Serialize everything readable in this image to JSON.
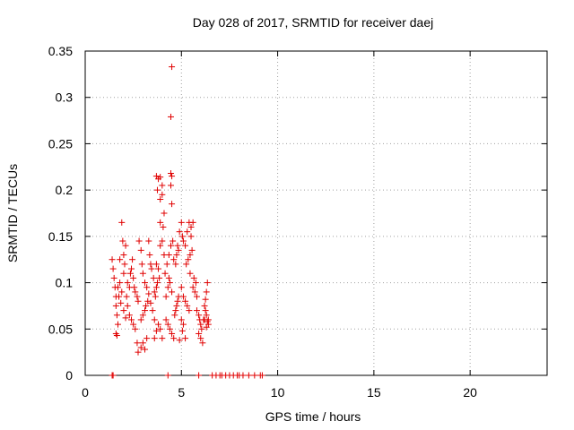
{
  "chart_data": {
    "type": "scatter",
    "title": "Day 028 of 2017, SRMTID for receiver daej",
    "xlabel": "GPS time / hours",
    "ylabel": "SRMTID / TECUs",
    "xlim": [
      0,
      24
    ],
    "ylim": [
      0,
      0.35
    ],
    "x_ticks": [
      "0",
      "5",
      "10",
      "15",
      "20"
    ],
    "x_tick_values": [
      0,
      5,
      10,
      15,
      20
    ],
    "y_ticks": [
      "0",
      "0.05",
      "0.1",
      "0.15",
      "0.2",
      "0.25",
      "0.3",
      "0.35"
    ],
    "y_tick_values": [
      0,
      0.05,
      0.1,
      0.15,
      0.2,
      0.25,
      0.3,
      0.35
    ],
    "grid": true,
    "marker": "+",
    "marker_color": "#e00000",
    "series": [
      {
        "points": [
          [
            4.5,
            0.333
          ],
          [
            4.45,
            0.279
          ],
          [
            3.7,
            0.215
          ],
          [
            3.8,
            0.212
          ],
          [
            3.9,
            0.214
          ],
          [
            4.0,
            0.205
          ],
          [
            3.75,
            0.2
          ],
          [
            4.0,
            0.195
          ],
          [
            3.9,
            0.19
          ],
          [
            4.45,
            0.218
          ],
          [
            4.5,
            0.215
          ],
          [
            4.45,
            0.205
          ],
          [
            4.5,
            0.185
          ],
          [
            3.9,
            0.165
          ],
          [
            4.1,
            0.175
          ],
          [
            4.05,
            0.16
          ],
          [
            1.9,
            0.165
          ],
          [
            1.95,
            0.145
          ],
          [
            2.1,
            0.14
          ],
          [
            2.0,
            0.13
          ],
          [
            1.8,
            0.125
          ],
          [
            2.05,
            0.12
          ],
          [
            1.4,
            0.125
          ],
          [
            1.45,
            0.115
          ],
          [
            1.5,
            0.105
          ],
          [
            1.55,
            0.095
          ],
          [
            1.6,
            0.085
          ],
          [
            1.6,
            0.075
          ],
          [
            1.65,
            0.065
          ],
          [
            1.7,
            0.055
          ],
          [
            1.6,
            0.045
          ],
          [
            1.65,
            0.043
          ],
          [
            1.8,
            0.1
          ],
          [
            1.9,
            0.09
          ],
          [
            2.0,
            0.11
          ],
          [
            2.15,
            0.085
          ],
          [
            2.2,
            0.075
          ],
          [
            2.3,
            0.065
          ],
          [
            2.4,
            0.06
          ],
          [
            2.5,
            0.055
          ],
          [
            2.6,
            0.05
          ],
          [
            2.7,
            0.035
          ],
          [
            2.75,
            0.025
          ],
          [
            2.9,
            0.03
          ],
          [
            3.0,
            0.035
          ],
          [
            3.1,
            0.028
          ],
          [
            3.2,
            0.04
          ],
          [
            2.5,
            0.105
          ],
          [
            2.55,
            0.095
          ],
          [
            2.6,
            0.09
          ],
          [
            2.7,
            0.085
          ],
          [
            2.75,
            0.08
          ],
          [
            2.8,
            0.145
          ],
          [
            2.9,
            0.135
          ],
          [
            2.95,
            0.12
          ],
          [
            3.0,
            0.11
          ],
          [
            3.1,
            0.1
          ],
          [
            3.2,
            0.095
          ],
          [
            3.3,
            0.088
          ],
          [
            3.4,
            0.078
          ],
          [
            3.5,
            0.07
          ],
          [
            3.6,
            0.06
          ],
          [
            3.3,
            0.145
          ],
          [
            3.35,
            0.13
          ],
          [
            3.4,
            0.12
          ],
          [
            3.45,
            0.115
          ],
          [
            3.55,
            0.105
          ],
          [
            3.7,
            0.12
          ],
          [
            3.8,
            0.115
          ],
          [
            3.9,
            0.14
          ],
          [
            4.0,
            0.145
          ],
          [
            4.1,
            0.13
          ],
          [
            3.6,
            0.04
          ],
          [
            3.7,
            0.048
          ],
          [
            3.8,
            0.055
          ],
          [
            3.9,
            0.05
          ],
          [
            4.0,
            0.04
          ],
          [
            4.2,
            0.085
          ],
          [
            4.3,
            0.095
          ],
          [
            4.35,
            0.105
          ],
          [
            4.4,
            0.1
          ],
          [
            4.5,
            0.09
          ],
          [
            4.2,
            0.06
          ],
          [
            4.3,
            0.055
          ],
          [
            4.4,
            0.05
          ],
          [
            4.5,
            0.045
          ],
          [
            4.6,
            0.04
          ],
          [
            4.6,
            0.125
          ],
          [
            4.7,
            0.12
          ],
          [
            4.75,
            0.13
          ],
          [
            4.8,
            0.14
          ],
          [
            4.85,
            0.135
          ],
          [
            4.9,
            0.155
          ],
          [
            5.0,
            0.165
          ],
          [
            5.05,
            0.15
          ],
          [
            5.1,
            0.145
          ],
          [
            5.2,
            0.14
          ],
          [
            5.3,
            0.155
          ],
          [
            5.4,
            0.165
          ],
          [
            5.5,
            0.16
          ],
          [
            5.6,
            0.165
          ],
          [
            5.5,
            0.15
          ],
          [
            5.0,
            0.095
          ],
          [
            5.1,
            0.085
          ],
          [
            5.2,
            0.08
          ],
          [
            5.3,
            0.075
          ],
          [
            5.4,
            0.07
          ],
          [
            5.0,
            0.06
          ],
          [
            5.1,
            0.055
          ],
          [
            5.2,
            0.04
          ],
          [
            4.9,
            0.038
          ],
          [
            5.05,
            0.048
          ],
          [
            5.6,
            0.095
          ],
          [
            5.7,
            0.09
          ],
          [
            5.8,
            0.085
          ],
          [
            5.75,
            0.1
          ],
          [
            5.65,
            0.105
          ],
          [
            5.8,
            0.07
          ],
          [
            5.9,
            0.065
          ],
          [
            5.95,
            0.06
          ],
          [
            6.0,
            0.055
          ],
          [
            6.05,
            0.05
          ],
          [
            5.9,
            0.045
          ],
          [
            6.0,
            0.04
          ],
          [
            6.1,
            0.035
          ],
          [
            6.15,
            0.06
          ],
          [
            6.2,
            0.075
          ],
          [
            6.25,
            0.082
          ],
          [
            6.3,
            0.09
          ],
          [
            6.35,
            0.1
          ],
          [
            6.3,
            0.065
          ],
          [
            6.2,
            0.06
          ],
          [
            6.4,
            0.06
          ],
          [
            6.35,
            0.058
          ],
          [
            6.4,
            0.055
          ],
          [
            6.3,
            0.052
          ],
          [
            6.25,
            0.07
          ],
          [
            1.7,
            0.095
          ],
          [
            1.75,
            0.085
          ],
          [
            1.85,
            0.078
          ],
          [
            2.0,
            0.07
          ],
          [
            2.1,
            0.062
          ],
          [
            2.2,
            0.1
          ],
          [
            2.3,
            0.095
          ],
          [
            2.35,
            0.11
          ],
          [
            2.4,
            0.115
          ],
          [
            2.45,
            0.125
          ],
          [
            2.9,
            0.06
          ],
          [
            3.0,
            0.065
          ],
          [
            3.1,
            0.07
          ],
          [
            3.15,
            0.075
          ],
          [
            3.25,
            0.08
          ],
          [
            3.6,
            0.09
          ],
          [
            3.65,
            0.085
          ],
          [
            3.7,
            0.095
          ],
          [
            3.75,
            0.1
          ],
          [
            3.85,
            0.105
          ],
          [
            4.15,
            0.11
          ],
          [
            4.25,
            0.12
          ],
          [
            4.35,
            0.13
          ],
          [
            4.45,
            0.14
          ],
          [
            4.55,
            0.145
          ],
          [
            4.65,
            0.065
          ],
          [
            4.7,
            0.07
          ],
          [
            4.75,
            0.075
          ],
          [
            4.8,
            0.08
          ],
          [
            4.85,
            0.085
          ],
          [
            5.25,
            0.12
          ],
          [
            5.35,
            0.125
          ],
          [
            5.45,
            0.13
          ],
          [
            5.55,
            0.135
          ],
          [
            5.45,
            0.11
          ],
          [
            1.4,
            0.0
          ],
          [
            1.45,
            0.0
          ],
          [
            4.3,
            0.0
          ],
          [
            5.9,
            0.0
          ],
          [
            6.6,
            0.0
          ],
          [
            6.8,
            0.0
          ],
          [
            7.0,
            0.0
          ],
          [
            7.1,
            0.0
          ],
          [
            7.3,
            0.0
          ],
          [
            7.5,
            0.0
          ],
          [
            7.7,
            0.0
          ],
          [
            7.9,
            0.0
          ],
          [
            8.0,
            0.0
          ],
          [
            8.2,
            0.0
          ],
          [
            8.5,
            0.0
          ],
          [
            8.8,
            0.0
          ],
          [
            9.1,
            0.0
          ],
          [
            9.2,
            0.0
          ]
        ]
      }
    ]
  }
}
